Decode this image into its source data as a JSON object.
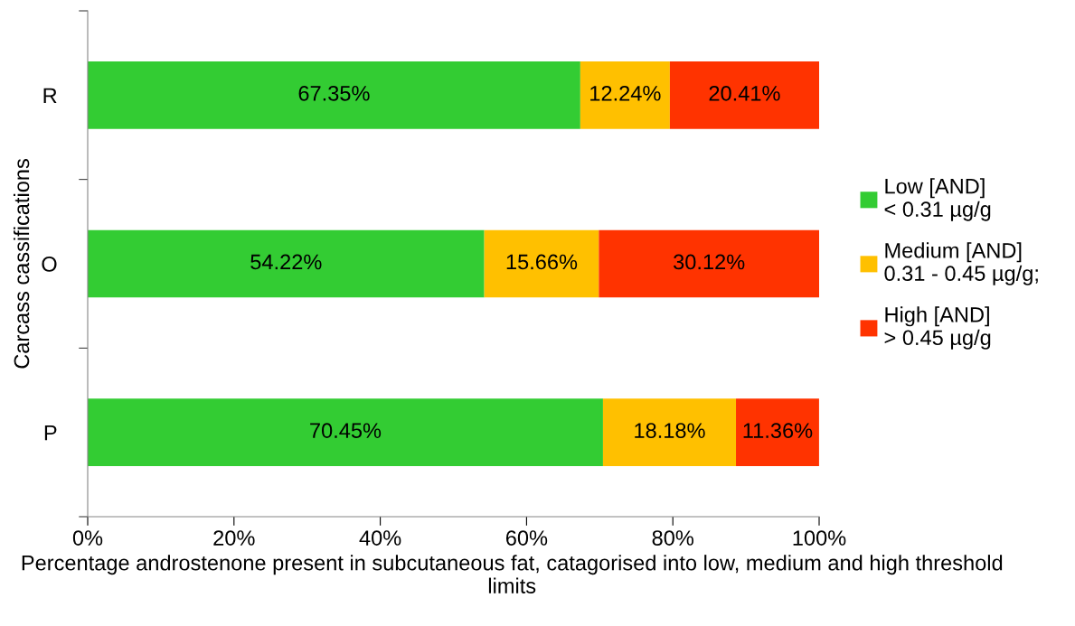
{
  "chart_data": {
    "type": "bar",
    "orientation": "horizontal",
    "stacked": true,
    "categories": [
      "R",
      "O",
      "P"
    ],
    "series": [
      {
        "name": "Low [AND]\n< 0.31 µg/g",
        "color": "#33cc33",
        "values": [
          67.35,
          54.22,
          70.45
        ],
        "value_labels": [
          "67.35%",
          "54.22%",
          "70.45%"
        ]
      },
      {
        "name": "Medium [AND]\n0.31 - 0.45 µg/g;",
        "color": "#ffc000",
        "values": [
          12.24,
          15.66,
          18.18
        ],
        "value_labels": [
          "12.24%",
          "15.66%",
          "18.18%"
        ]
      },
      {
        "name": "High [AND]\n> 0.45 µg/g",
        "color": "#ff3300",
        "values": [
          20.41,
          30.12,
          11.36
        ],
        "value_labels": [
          "20.41%",
          "30.12%",
          "11.36%"
        ]
      }
    ],
    "xlim": [
      0,
      100
    ],
    "xticks": [
      {
        "value": 0,
        "label": "0%"
      },
      {
        "value": 20,
        "label": "20%"
      },
      {
        "value": 40,
        "label": "40%"
      },
      {
        "value": 60,
        "label": "60%"
      },
      {
        "value": 80,
        "label": "80%"
      },
      {
        "value": 100,
        "label": "100%"
      }
    ],
    "xlabel": "Percentage androstenone present in subcutaneous fat, catagorised into low, medium and high threshold limits",
    "ylabel": "Carcass cassifications",
    "legend": "right",
    "grid": false
  }
}
